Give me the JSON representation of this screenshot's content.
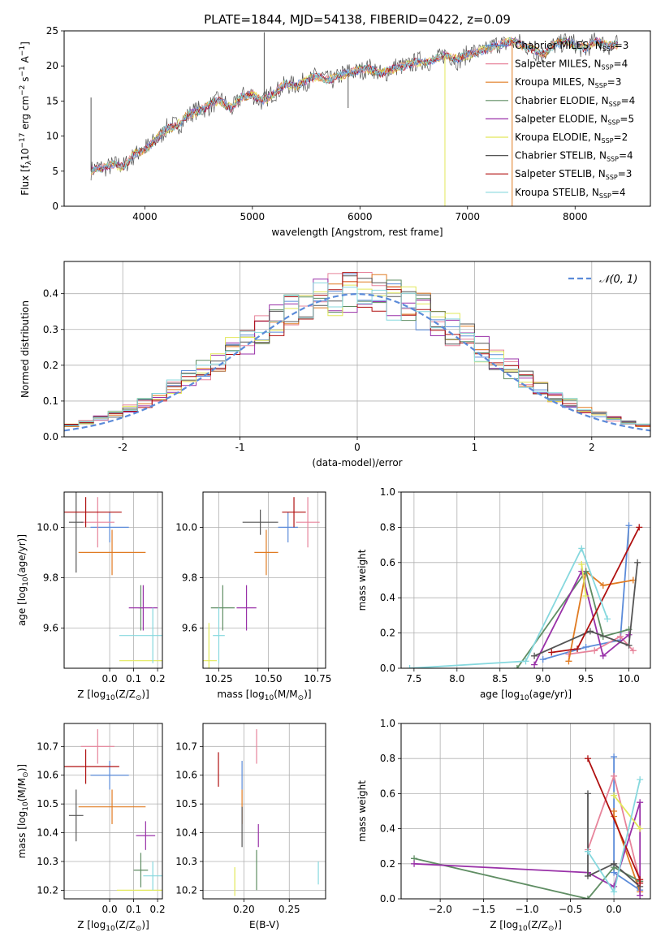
{
  "figure": {
    "title": "PLATE=1844, MJD=54138, FIBERID=0422, z=0.09"
  },
  "series": [
    {
      "key": "chabrier_miles",
      "label": "Chabrier MILES, N",
      "n": "=3",
      "color": "#5b8bd9"
    },
    {
      "key": "salpeter_miles",
      "label": "Salpeter MILES, N",
      "n": "=4",
      "color": "#e7849b"
    },
    {
      "key": "kroupa_miles",
      "label": "Kroupa MILES, N",
      "n": "=3",
      "color": "#e07b22"
    },
    {
      "key": "chabrier_elodie",
      "label": "Chabrier ELODIE, N",
      "n": "=4",
      "color": "#5f8d63"
    },
    {
      "key": "salpeter_elodie",
      "label": "Salpeter ELODIE, N",
      "n": "=5",
      "color": "#9931a8"
    },
    {
      "key": "kroupa_elodie",
      "label": "Kroupa ELODIE, N",
      "n": "=2",
      "color": "#e2e85a"
    },
    {
      "key": "chabrier_stelib",
      "label": "Chabrier STELIB, N",
      "n": "=4",
      "color": "#555555"
    },
    {
      "key": "salpeter_stelib",
      "label": "Salpeter STELIB, N",
      "n": "=3",
      "color": "#b01010"
    },
    {
      "key": "kroupa_stelib",
      "label": "Kroupa STELIB, N",
      "n": "=4",
      "color": "#86d8de"
    }
  ],
  "subscript": "SSP",
  "chart_data": [
    {
      "id": "spectrum",
      "type": "line",
      "title": "PLATE=1844, MJD=54138, FIBERID=0422, z=0.09",
      "xlabel": "wavelength [Angstrom, rest frame]",
      "ylabel": "Flux [f",
      "ylabel_parts": [
        "Flux [f",
        "λ",
        "10",
        "−17",
        " erg cm",
        "−2",
        " s",
        "−1",
        " A",
        "−1",
        "]"
      ],
      "xlim": [
        3250,
        8700
      ],
      "ylim": [
        0,
        25
      ],
      "xticks": [
        4000,
        5000,
        6000,
        7000,
        8000
      ],
      "yticks": [
        0,
        5,
        10,
        15,
        20,
        25
      ],
      "grid": false,
      "legend": "upper right",
      "continuum_x": [
        3500,
        3600,
        3700,
        3800,
        3900,
        4000,
        4100,
        4200,
        4300,
        4400,
        4500,
        4600,
        4700,
        4800,
        4900,
        5000,
        5100,
        5200,
        5300,
        5400,
        5500,
        5600,
        5700,
        5800,
        5900,
        6000,
        6100,
        6200,
        6300,
        6400,
        6500,
        6600,
        6700,
        6800,
        6900,
        7000,
        7100,
        7200,
        7300,
        7400,
        7500,
        7600,
        7700,
        7800,
        7900,
        8000,
        8100,
        8200,
        8300,
        8400
      ],
      "continuum_y": [
        5.0,
        5.5,
        6.0,
        5.5,
        7.5,
        8.0,
        9.5,
        11.0,
        11.5,
        13.0,
        13.5,
        14.5,
        15.0,
        14.0,
        15.5,
        16.0,
        15.0,
        16.0,
        17.5,
        17.0,
        18.0,
        18.5,
        18.0,
        18.5,
        19.0,
        19.5,
        19.5,
        19.0,
        19.5,
        20.0,
        20.5,
        20.5,
        21.0,
        21.5,
        21.0,
        21.5,
        22.0,
        22.5,
        23.0,
        23.5,
        23.0,
        22.5,
        21.5,
        23.0,
        23.5,
        23.0,
        22.5,
        23.5,
        23.0,
        23.0
      ],
      "spikes": [
        {
          "x": 3500,
          "y": 15.5,
          "series": "chabrier_stelib"
        },
        {
          "x": 5110,
          "y": 24.8,
          "series": "chabrier_stelib"
        },
        {
          "x": 5890,
          "y": 14.0,
          "series": "chabrier_stelib"
        },
        {
          "x": 6790,
          "y": 0,
          "series": "kroupa_elodie"
        },
        {
          "x": 7415,
          "y": 0,
          "series": "kroupa_miles"
        }
      ]
    },
    {
      "id": "residuals",
      "type": "histogram",
      "xlabel": "(data-model)/error",
      "ylabel": "Normed distribution",
      "xlim": [
        -2.5,
        2.5
      ],
      "ylim": [
        0,
        0.49
      ],
      "xticks": [
        -2,
        -1,
        0,
        1,
        2
      ],
      "yticks": [
        0.0,
        0.1,
        0.2,
        0.3,
        0.4
      ],
      "grid": true,
      "legend": "upper right",
      "reference": {
        "label": "𝒩(0, 1)",
        "color": "#5b8bd9",
        "style": "dashed"
      },
      "bin_width": 0.125
    },
    {
      "id": "age_vs_z",
      "type": "scatter",
      "xlabel": "Z [log",
      "xlabel_parts": [
        "Z [log",
        "10",
        "(Z/Z",
        "⊙",
        ")]"
      ],
      "ylabel_parts": [
        "age  [log",
        "10",
        "(age/yr)]"
      ],
      "xlim": [
        -0.19,
        0.22
      ],
      "ylim": [
        9.44,
        10.14
      ],
      "xticks": [
        0.0,
        0.1,
        0.2
      ],
      "xticklabels": [
        "0.0",
        "0.1",
        "0.2"
      ],
      "yticks": [
        9.6,
        9.8,
        10.0
      ],
      "yticklabels": [
        "9.6",
        "9.8",
        "10.0"
      ],
      "grid": true,
      "points": [
        {
          "series": "chabrier_miles",
          "x": 0.0,
          "xerr": 0.08,
          "y": 10.0,
          "yerr": 0.06
        },
        {
          "series": "salpeter_miles",
          "x": -0.05,
          "xerr": 0.07,
          "y": 10.02,
          "yerr": 0.1
        },
        {
          "series": "kroupa_miles",
          "x": 0.01,
          "xerr": 0.14,
          "y": 9.9,
          "yerr": 0.09
        },
        {
          "series": "chabrier_elodie",
          "x": 0.13,
          "xerr": 0.01,
          "y": 9.68,
          "yerr": 0.09
        },
        {
          "series": "salpeter_elodie",
          "x": 0.14,
          "xerr": 0.06,
          "y": 9.68,
          "yerr": 0.09
        },
        {
          "series": "kroupa_elodie",
          "x": 0.14,
          "xerr": 0.1,
          "y": 9.47,
          "yerr": 0.0
        },
        {
          "series": "chabrier_stelib",
          "x": -0.14,
          "xerr": 0.03,
          "y": 10.02,
          "yerr": 0.2
        },
        {
          "series": "salpeter_stelib",
          "x": -0.1,
          "xerr": 0.15,
          "y": 10.06,
          "yerr": 0.06
        },
        {
          "series": "kroupa_stelib",
          "x": 0.18,
          "xerr": 0.14,
          "y": 9.57,
          "yerr": 0.11
        }
      ]
    },
    {
      "id": "age_vs_mass",
      "type": "scatter",
      "xlabel_parts": [
        "mass [log",
        "10",
        "(M/M",
        "⊙",
        ")]"
      ],
      "xlim": [
        10.17,
        10.79
      ],
      "ylim": [
        9.44,
        10.14
      ],
      "xticks": [
        10.25,
        10.5,
        10.75
      ],
      "xticklabels": [
        "10.25",
        "10.50",
        "10.75"
      ],
      "yticks": [
        9.6,
        9.8,
        10.0
      ],
      "yticklabels": [
        "9.6",
        "9.8",
        "10.0"
      ],
      "grid": true,
      "points": [
        {
          "series": "chabrier_miles",
          "x": 10.6,
          "xerr": 0.05,
          "y": 10.0,
          "yerr": 0.06
        },
        {
          "series": "salpeter_miles",
          "x": 10.7,
          "xerr": 0.06,
          "y": 10.02,
          "yerr": 0.1
        },
        {
          "series": "kroupa_miles",
          "x": 10.49,
          "xerr": 0.06,
          "y": 9.9,
          "yerr": 0.09
        },
        {
          "series": "chabrier_elodie",
          "x": 10.27,
          "xerr": 0.06,
          "y": 9.68,
          "yerr": 0.09
        },
        {
          "series": "salpeter_elodie",
          "x": 10.39,
          "xerr": 0.05,
          "y": 9.68,
          "yerr": 0.09
        },
        {
          "series": "kroupa_elodie",
          "x": 10.2,
          "xerr": 0.04,
          "y": 9.47,
          "yerr": 0.15
        },
        {
          "series": "chabrier_stelib",
          "x": 10.46,
          "xerr": 0.09,
          "y": 10.02,
          "yerr": 0.05
        },
        {
          "series": "salpeter_stelib",
          "x": 10.63,
          "xerr": 0.06,
          "y": 10.06,
          "yerr": 0.06
        },
        {
          "series": "kroupa_stelib",
          "x": 10.25,
          "xerr": 0.03,
          "y": 9.57,
          "yerr": 0.11
        }
      ]
    },
    {
      "id": "weight_vs_age",
      "type": "line",
      "xlabel_parts": [
        "age  [log",
        "10",
        "(age/yr)]"
      ],
      "ylabel": "mass weight",
      "xlim": [
        7.35,
        10.25
      ],
      "ylim": [
        0,
        1.0
      ],
      "xticks": [
        7.5,
        8.0,
        8.5,
        9.0,
        9.5,
        10.0
      ],
      "xticklabels": [
        "7.5",
        "8.0",
        "8.5",
        "9.0",
        "9.5",
        "10.0"
      ],
      "yticks": [
        0.0,
        0.2,
        0.4,
        0.6,
        0.8,
        1.0
      ],
      "yticklabels": [
        "0.0",
        "0.2",
        "0.4",
        "0.6",
        "0.8",
        "1.0"
      ],
      "grid": true,
      "lines": [
        {
          "series": "chabrier_miles",
          "x": [
            9.0,
            9.5,
            9.9,
            10.0
          ],
          "y": [
            0.05,
            0.12,
            0.16,
            0.81
          ]
        },
        {
          "series": "salpeter_miles",
          "x": [
            9.3,
            9.6,
            9.9,
            10.05
          ],
          "y": [
            0.08,
            0.1,
            0.18,
            0.1
          ]
        },
        {
          "series": "kroupa_miles",
          "x": [
            9.3,
            9.5,
            9.7,
            10.05
          ],
          "y": [
            0.04,
            0.55,
            0.47,
            0.5
          ]
        },
        {
          "series": "chabrier_elodie",
          "x": [
            8.7,
            9.5,
            9.7,
            10.0
          ],
          "y": [
            0.0,
            0.55,
            0.18,
            0.22
          ]
        },
        {
          "series": "salpeter_elodie",
          "x": [
            8.9,
            9.45,
            9.7,
            10.0
          ],
          "y": [
            0.02,
            0.55,
            0.07,
            0.19
          ]
        },
        {
          "series": "kroupa_elodie",
          "x": [
            9.45,
            9.5
          ],
          "y": [
            0.59,
            0.41
          ]
        },
        {
          "series": "chabrier_stelib",
          "x": [
            8.9,
            9.55,
            10.0,
            10.1
          ],
          "y": [
            0.07,
            0.21,
            0.13,
            0.6
          ]
        },
        {
          "series": "salpeter_stelib",
          "x": [
            9.1,
            9.4,
            10.12
          ],
          "y": [
            0.09,
            0.11,
            0.8
          ]
        },
        {
          "series": "kroupa_stelib",
          "x": [
            7.45,
            8.8,
            9.45,
            9.75
          ],
          "y": [
            0.0,
            0.04,
            0.68,
            0.28
          ]
        }
      ]
    },
    {
      "id": "mass_vs_z",
      "type": "scatter",
      "xlabel_parts": [
        "Z [log",
        "10",
        "(Z/Z",
        "⊙",
        ")]"
      ],
      "ylabel_parts": [
        "mass [log",
        "10",
        "(M/M",
        "⊙",
        ")]"
      ],
      "xlim": [
        -0.19,
        0.22
      ],
      "ylim": [
        10.17,
        10.78
      ],
      "xticks": [
        0.0,
        0.1,
        0.2
      ],
      "xticklabels": [
        "0.0",
        "0.1",
        "0.2"
      ],
      "yticks": [
        10.2,
        10.3,
        10.4,
        10.5,
        10.6,
        10.7
      ],
      "yticklabels": [
        "10.2",
        "10.3",
        "10.4",
        "10.5",
        "10.6",
        "10.7"
      ],
      "grid": true,
      "points": [
        {
          "series": "chabrier_miles",
          "x": 0.0,
          "xerr": 0.08,
          "y": 10.6,
          "yerr": 0.05
        },
        {
          "series": "salpeter_miles",
          "x": -0.05,
          "xerr": 0.07,
          "y": 10.7,
          "yerr": 0.06
        },
        {
          "series": "kroupa_miles",
          "x": 0.01,
          "xerr": 0.14,
          "y": 10.49,
          "yerr": 0.06
        },
        {
          "series": "chabrier_elodie",
          "x": 0.13,
          "xerr": 0.03,
          "y": 10.27,
          "yerr": 0.06
        },
        {
          "series": "salpeter_elodie",
          "x": 0.15,
          "xerr": 0.04,
          "y": 10.39,
          "yerr": 0.05
        },
        {
          "series": "kroupa_elodie",
          "x": 0.13,
          "xerr": 0.1,
          "y": 10.2,
          "yerr": 0.0
        },
        {
          "series": "chabrier_stelib",
          "x": -0.14,
          "xerr": 0.03,
          "y": 10.46,
          "yerr": 0.09
        },
        {
          "series": "salpeter_stelib",
          "x": -0.1,
          "xerr": 0.14,
          "y": 10.63,
          "yerr": 0.06
        },
        {
          "series": "kroupa_stelib",
          "x": 0.18,
          "xerr": 0.04,
          "y": 10.25,
          "yerr": 0.05
        }
      ]
    },
    {
      "id": "mass_vs_ebv",
      "type": "scatter",
      "xlabel": "E(B-V)",
      "xlim": [
        0.155,
        0.29
      ],
      "ylim": [
        10.17,
        10.78
      ],
      "xticks": [
        0.2,
        0.25
      ],
      "xticklabels": [
        "0.20",
        "0.25"
      ],
      "yticks": [
        10.2,
        10.3,
        10.4,
        10.5,
        10.6,
        10.7
      ],
      "yticklabels": [
        "10.2",
        "10.3",
        "10.4",
        "10.5",
        "10.6",
        "10.7"
      ],
      "grid": true,
      "points": [
        {
          "series": "chabrier_miles",
          "x": 0.198,
          "y": 10.6,
          "yerr": 0.05
        },
        {
          "series": "salpeter_miles",
          "x": 0.214,
          "y": 10.7,
          "yerr": 0.06
        },
        {
          "series": "kroupa_miles",
          "x": 0.198,
          "y": 10.49,
          "yerr": 0.06
        },
        {
          "series": "chabrier_elodie",
          "x": 0.214,
          "y": 10.27,
          "yerr": 0.07
        },
        {
          "series": "salpeter_elodie",
          "x": 0.216,
          "y": 10.39,
          "yerr": 0.04
        },
        {
          "series": "kroupa_elodie",
          "x": 0.19,
          "y": 10.23,
          "yerr": 0.05
        },
        {
          "series": "chabrier_stelib",
          "x": 0.198,
          "y": 10.42,
          "yerr": 0.07
        },
        {
          "series": "salpeter_stelib",
          "x": 0.172,
          "y": 10.62,
          "yerr": 0.06
        },
        {
          "series": "kroupa_stelib",
          "x": 0.282,
          "y": 10.26,
          "yerr": 0.04
        }
      ]
    },
    {
      "id": "weight_vs_z",
      "type": "line",
      "xlabel_parts": [
        "Z [log",
        "10",
        "(Z/Z",
        "⊙",
        ")]"
      ],
      "ylabel": "mass weight",
      "xlim": [
        -2.45,
        0.42
      ],
      "ylim": [
        0,
        1.0
      ],
      "xticks": [
        -2.0,
        -1.5,
        -1.0,
        -0.5,
        0.0
      ],
      "xticklabels": [
        "−2.0",
        "−1.5",
        "−1.0",
        "−0.5",
        "0.0"
      ],
      "yticks": [
        0.0,
        0.2,
        0.4,
        0.6,
        0.8,
        1.0
      ],
      "yticklabels": [
        "0.0",
        "0.2",
        "0.4",
        "0.6",
        "0.8",
        "1.0"
      ],
      "grid": true,
      "lines": [
        {
          "series": "chabrier_miles",
          "x": [
            0.0,
            0.0,
            0.3
          ],
          "y": [
            0.81,
            0.15,
            0.05
          ]
        },
        {
          "series": "salpeter_miles",
          "x": [
            -0.3,
            0.0,
            0.3
          ],
          "y": [
            0.28,
            0.7,
            0.1
          ]
        },
        {
          "series": "kroupa_miles",
          "x": [
            0.0,
            0.0,
            0.3
          ],
          "y": [
            0.5,
            0.47,
            0.04
          ]
        },
        {
          "series": "chabrier_elodie",
          "x": [
            -2.3,
            -0.3,
            0.0,
            0.3
          ],
          "y": [
            0.23,
            0.0,
            0.18,
            0.1
          ]
        },
        {
          "series": "salpeter_elodie",
          "x": [
            -2.3,
            -0.3,
            0.0,
            0.3,
            0.3
          ],
          "y": [
            0.2,
            0.15,
            0.07,
            0.55,
            0.02
          ]
        },
        {
          "series": "kroupa_elodie",
          "x": [
            0.0,
            0.3
          ],
          "y": [
            0.59,
            0.4
          ]
        },
        {
          "series": "chabrier_stelib",
          "x": [
            -0.3,
            -0.3,
            0.0,
            0.3
          ],
          "y": [
            0.6,
            0.13,
            0.2,
            0.07
          ]
        },
        {
          "series": "salpeter_stelib",
          "x": [
            -0.3,
            0.3,
            0.3
          ],
          "y": [
            0.8,
            0.11,
            0.09
          ]
        },
        {
          "series": "kroupa_stelib",
          "x": [
            -0.3,
            0.0,
            0.3
          ],
          "y": [
            0.27,
            0.04,
            0.68
          ]
        }
      ]
    }
  ]
}
